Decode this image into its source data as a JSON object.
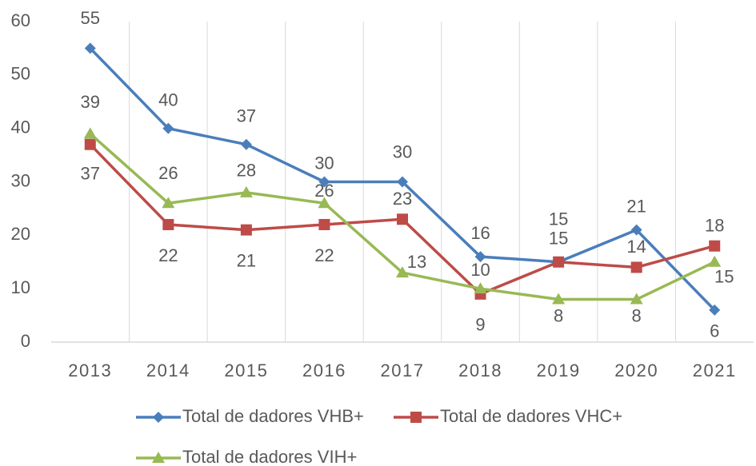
{
  "chart_data": {
    "type": "line",
    "categories": [
      "2013",
      "2014",
      "2015",
      "2016",
      "2017",
      "2018",
      "2019",
      "2020",
      "2021"
    ],
    "series": [
      {
        "name": "Total de dadores VHB+",
        "color": "#4a7ebb",
        "marker": "diamond",
        "values": [
          55,
          40,
          37,
          30,
          30,
          16,
          15,
          21,
          6
        ]
      },
      {
        "name": "Total de dadores VHC+",
        "color": "#be4b48",
        "marker": "square",
        "values": [
          37,
          22,
          21,
          22,
          23,
          9,
          15,
          14,
          18
        ]
      },
      {
        "name": "Total de dadores VIH+",
        "color": "#98b954",
        "marker": "triangle",
        "values": [
          39,
          26,
          28,
          26,
          13,
          10,
          8,
          8,
          15
        ]
      }
    ],
    "ylim": [
      0,
      60
    ],
    "yticks": [
      0,
      10,
      20,
      30,
      40,
      50,
      60
    ],
    "grid": true,
    "legend": "bottom"
  }
}
